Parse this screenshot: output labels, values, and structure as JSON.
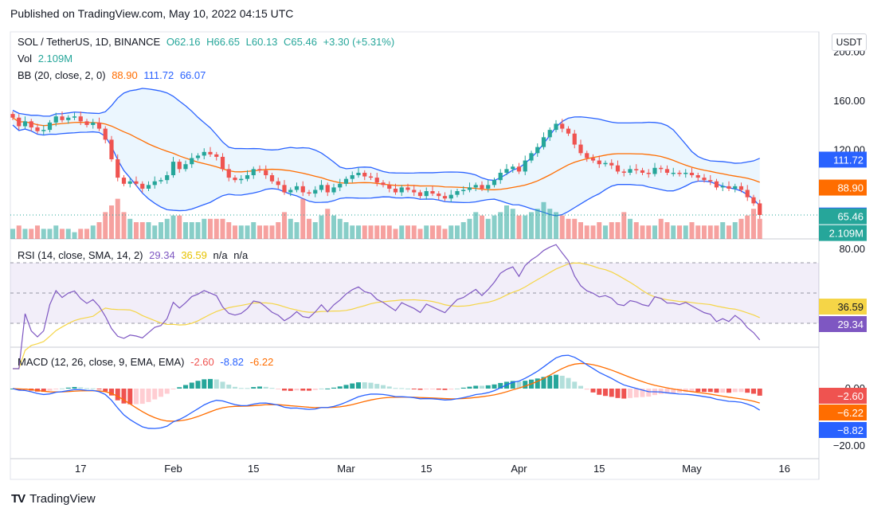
{
  "header": {
    "published": "Published on TradingView.com, May 10, 2022 04:15 UTC"
  },
  "footer": {
    "brand": "TradingView"
  },
  "price_legend": {
    "symbol": "SOL / TetherUS, 1D, BINANCE",
    "open": "O62.16",
    "high": "H66.65",
    "low": "L60.13",
    "close": "C65.46",
    "change": "+3.30 (+5.31%)",
    "vol_label": "Vol",
    "vol_value": "2.109M",
    "bb_label": "BB (20, close, 2, 0)",
    "bb_mid": "88.90",
    "bb_upper": "111.72",
    "bb_lower": "66.07"
  },
  "currency_button": "USDT",
  "rsi_legend": {
    "label": "RSI (14, close, SMA, 14, 2)",
    "rsi": "29.34",
    "sma": "36.59",
    "na1": "n/a",
    "na2": "n/a"
  },
  "macd_legend": {
    "label": "MACD (12, 26, close, 9, EMA, EMA)",
    "hist": "-2.60",
    "macd": "-8.82",
    "signal": "-6.22"
  },
  "colors": {
    "up": "#26a69a",
    "down": "#ef5350",
    "bb_band": "#2962ff",
    "bb_mid": "#ff6d00",
    "rsi": "#7e57c2",
    "rsi_sma": "#f5d547",
    "macd": "#2962ff",
    "signal": "#ff6d00"
  },
  "chart_data": {
    "type": "candlestick",
    "title": "SOL / TetherUS, 1D, BINANCE",
    "x_ticks": [
      "17",
      "Feb",
      "15",
      "Mar",
      "15",
      "Apr",
      "15",
      "May",
      "16"
    ],
    "price_axis": {
      "ticks": [
        "200.00",
        "160.00",
        "120.00"
      ],
      "range": [
        47,
        205
      ]
    },
    "price_badges": {
      "bb_upper": "111.72",
      "bb_mid": "88.90",
      "bb_lower": "66.07",
      "close": "65.46",
      "volume": "2.109M"
    },
    "closes": [
      146,
      139,
      143,
      138,
      135,
      136,
      142,
      147,
      144,
      146,
      147,
      143,
      140,
      142,
      137,
      128,
      112,
      97,
      92,
      94,
      92,
      88,
      91,
      94,
      95,
      99,
      110,
      104,
      108,
      113,
      115,
      118,
      116,
      114,
      104,
      97,
      95,
      96,
      99,
      104,
      103,
      99,
      94,
      91,
      85,
      87,
      90,
      85,
      84,
      87,
      91,
      85,
      89,
      92,
      96,
      99,
      101,
      98,
      97,
      93,
      91,
      88,
      85,
      89,
      87,
      85,
      82,
      86,
      84,
      82,
      80,
      83,
      86,
      87,
      89,
      91,
      88,
      91,
      95,
      101,
      104,
      106,
      102,
      111,
      117,
      122,
      130,
      136,
      141,
      137,
      133,
      124,
      117,
      113,
      111,
      108,
      109,
      107,
      102,
      101,
      104,
      103,
      101,
      100,
      105,
      104,
      101,
      101,
      100,
      101,
      99,
      97,
      95,
      94,
      89,
      90,
      88,
      90,
      87,
      81,
      76,
      66.5
    ],
    "volume_rel": [
      0.3,
      0.4,
      0.3,
      0.3,
      0.4,
      0.3,
      0.3,
      0.4,
      0.3,
      0.3,
      0.2,
      0.3,
      0.3,
      0.4,
      0.5,
      0.8,
      1.0,
      1.2,
      0.8,
      0.6,
      0.5,
      0.5,
      0.5,
      0.4,
      0.5,
      0.6,
      0.7,
      0.7,
      0.5,
      0.5,
      0.5,
      0.6,
      0.6,
      0.6,
      0.6,
      0.5,
      0.4,
      0.4,
      0.4,
      0.5,
      0.4,
      0.4,
      0.4,
      0.5,
      0.8,
      0.6,
      0.5,
      1.2,
      0.6,
      0.5,
      0.7,
      0.9,
      0.7,
      0.6,
      0.5,
      0.4,
      0.4,
      0.4,
      0.4,
      0.4,
      0.4,
      0.4,
      0.3,
      0.4,
      0.4,
      0.4,
      0.3,
      0.4,
      0.4,
      0.4,
      0.3,
      0.4,
      0.4,
      0.5,
      0.6,
      0.8,
      0.7,
      0.6,
      0.7,
      0.8,
      1.0,
      0.9,
      0.7,
      0.7,
      0.8,
      0.9,
      1.1,
      0.9,
      0.8,
      0.7,
      0.6,
      0.6,
      0.5,
      0.4,
      0.4,
      0.5,
      0.4,
      0.5,
      0.5,
      0.8,
      0.6,
      0.5,
      0.4,
      0.4,
      0.4,
      0.6,
      0.5,
      0.4,
      0.4,
      0.4,
      0.5,
      0.4,
      0.4,
      0.4,
      0.4,
      0.5,
      0.4,
      0.5,
      0.6,
      0.7,
      0.9,
      0.6
    ],
    "rsi_axis": {
      "ticks": [
        "80.00"
      ],
      "bands": [
        70,
        50,
        30
      ]
    },
    "rsi_badges": {
      "sma": "36.59",
      "rsi": "29.34"
    },
    "macd_axis": {
      "ticks": [
        "0.00",
        "−20.00"
      ]
    },
    "macd_badges": {
      "hist": "−2.60",
      "signal": "−6.22",
      "macd": "−8.82"
    }
  }
}
